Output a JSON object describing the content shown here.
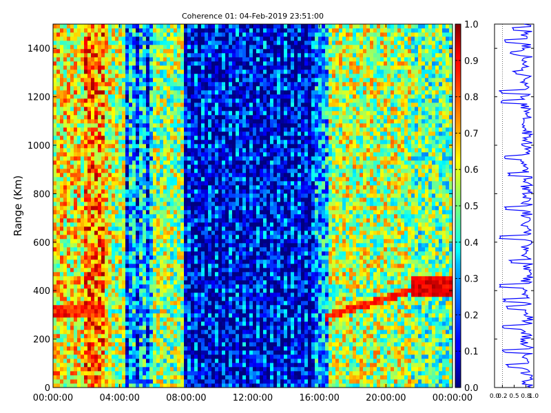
{
  "chart_data": [
    {
      "type": "heatmap",
      "title": "Coherence 01: 04-Feb-2019 23:51:00",
      "ylabel": "Range (Km)",
      "xlabel": "",
      "x_ticks": [
        "00:00:00",
        "04:00:00",
        "08:00:00",
        "12:00:00",
        "16:00:00",
        "20:00:00",
        "00:00:00"
      ],
      "xlim_hours": [
        0,
        24
      ],
      "y_ticks": [
        0,
        200,
        400,
        600,
        800,
        1000,
        1200,
        1400
      ],
      "ylim": [
        0,
        1500
      ],
      "colormap": "jet",
      "colorbar": {
        "ticks": [
          "0.0",
          "0.1",
          "0.2",
          "0.3",
          "0.4",
          "0.5",
          "0.6",
          "0.7",
          "0.8",
          "0.9",
          "1.0"
        ],
        "range": [
          0,
          1
        ]
      },
      "coherence_profile_by_hour": [
        {
          "start": 0,
          "end": 1.8,
          "level": 0.62
        },
        {
          "start": 1.8,
          "end": 3.2,
          "level": 0.75
        },
        {
          "start": 3.2,
          "end": 3.6,
          "level": 0.6
        },
        {
          "start": 3.6,
          "end": 4.3,
          "level": 0.55
        },
        {
          "start": 4.3,
          "end": 6.0,
          "level": 0.35
        },
        {
          "start": 6.0,
          "end": 7.8,
          "level": 0.52
        },
        {
          "start": 7.8,
          "end": 15.7,
          "level": 0.12
        },
        {
          "start": 15.7,
          "end": 16.6,
          "level": 0.3
        },
        {
          "start": 16.6,
          "end": 21.5,
          "level": 0.55
        },
        {
          "start": 21.5,
          "end": 24,
          "level": 0.48
        }
      ],
      "features": [
        {
          "name": "layer",
          "start_hour": 0,
          "end_hour": 3.0,
          "range_km": 320,
          "level": 0.85
        },
        {
          "name": "layer",
          "start_hour": 16.3,
          "end_hour": 22.0,
          "range_km_start": 290,
          "range_km_end": 410,
          "level": 0.85
        },
        {
          "name": "patch",
          "start_hour": 21.5,
          "end_hour": 24,
          "range_km_low": 380,
          "range_km_high": 460,
          "level": 0.9
        }
      ]
    },
    {
      "type": "line",
      "x_ticks": [
        "0.0",
        "0.2",
        "0.5",
        "0.8",
        "1.0"
      ],
      "xlim": [
        0,
        1
      ],
      "ylim": [
        0,
        1500
      ],
      "mean_level": 0.82,
      "dips_km": [
        90,
        150,
        250,
        330,
        360,
        420,
        520,
        620,
        740,
        880,
        950,
        1180,
        1220,
        1300,
        1380,
        1430,
        1480
      ],
      "dip_levels": [
        0.25,
        0.2,
        0.2,
        0.25,
        0.2,
        0.1,
        0.35,
        0.1,
        0.2,
        0.3,
        0.2,
        0.15,
        0.1,
        0.45,
        0.4,
        0.2,
        0.4
      ],
      "line_color": "#0000ff",
      "grid_lines_x": [
        0.2
      ]
    }
  ]
}
